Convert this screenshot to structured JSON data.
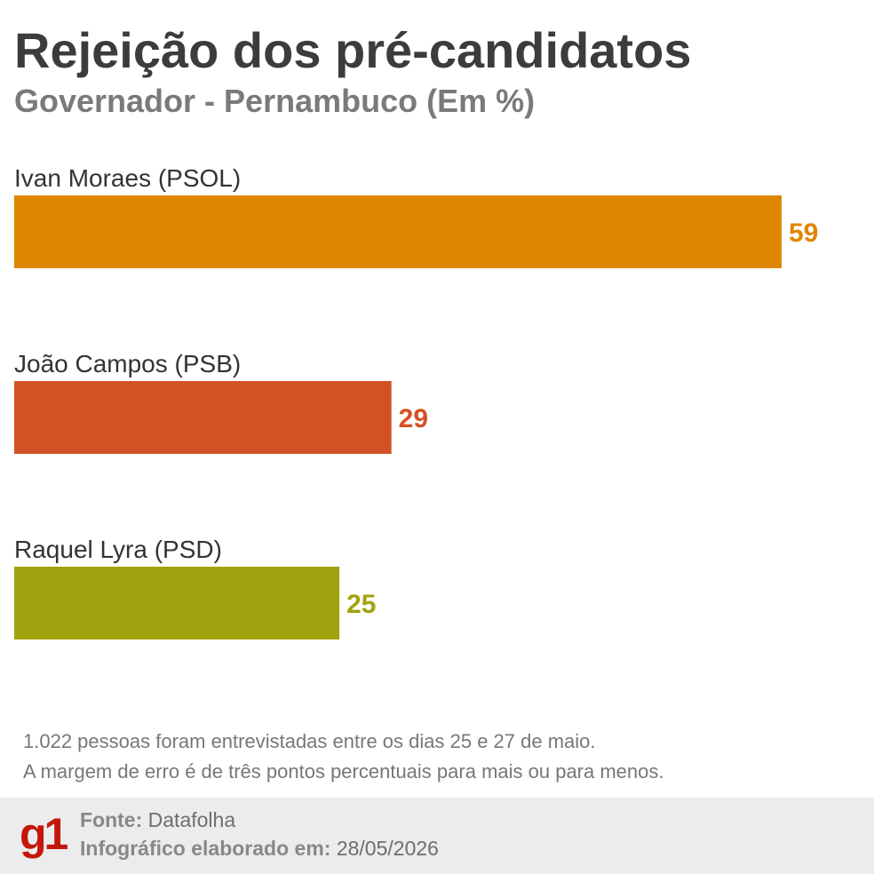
{
  "chart_data": {
    "type": "bar",
    "orientation": "horizontal",
    "title": "Rejeição dos pré-candidatos",
    "subtitle": "Governador - Pernambuco (Em %)",
    "categories": [
      "Ivan Moraes (PSOL)",
      "João Campos (PSB)",
      "Raquel Lyra (PSD)"
    ],
    "values": [
      59,
      29,
      25
    ],
    "colors": [
      "#df8600",
      "#d45125",
      "#a0a30e"
    ],
    "xlim": [
      0,
      59
    ],
    "grid": false,
    "legend": "none"
  },
  "notes": [
    "1.022 pessoas foram entrevistadas entre os dias 25 e 27 de maio.",
    "A margem de erro é de três pontos percentuais para mais ou para menos."
  ],
  "footer": {
    "logo": "g1",
    "source_label": "Fonte:",
    "source_value": "Datafolha",
    "date_label": "Infográfico elaborado em:",
    "date_value": "28/05/2026",
    "logo_color": "#c4170c"
  }
}
